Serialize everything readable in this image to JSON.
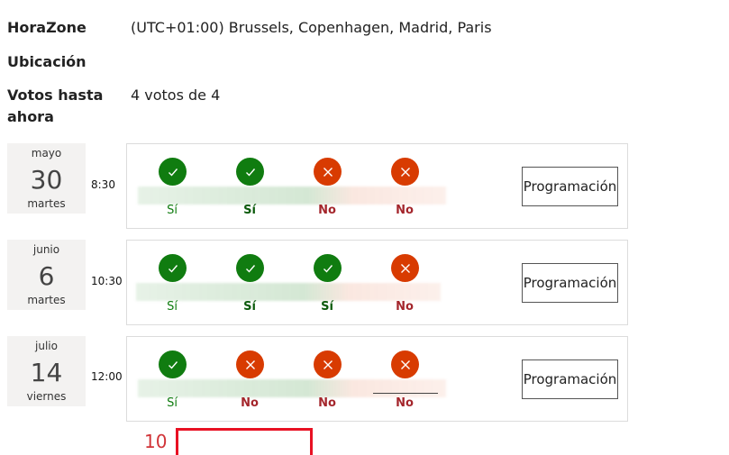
{
  "info": {
    "timezone_label": "HoraZone",
    "timezone_value": "(UTC+01:00) Brussels, Copenhagen, Madrid, Paris",
    "location_label": "Ubicación",
    "location_value": "",
    "votes_label_line1": "Votos hasta",
    "votes_label_line2": "ahora",
    "votes_value": "4 votos de 4"
  },
  "slots": [
    {
      "month": "mayo",
      "day": "30",
      "weekday": "martes",
      "time": "8:30",
      "votes": [
        {
          "value": "yes",
          "label": "Sí",
          "bold": false
        },
        {
          "value": "yes",
          "label": "Sí",
          "bold": true
        },
        {
          "value": "no",
          "label": "No",
          "bold": true
        },
        {
          "value": "no",
          "label": "No",
          "bold": true
        }
      ],
      "button_label": "Programación"
    },
    {
      "month": "junio",
      "day": "6",
      "weekday": "martes",
      "time": "10:30",
      "votes": [
        {
          "value": "yes",
          "label": "Sí",
          "bold": false
        },
        {
          "value": "yes",
          "label": "Sí",
          "bold": true
        },
        {
          "value": "yes",
          "label": "Sí",
          "bold": true
        },
        {
          "value": "no",
          "label": "No",
          "bold": true
        }
      ],
      "button_label": "Programación"
    },
    {
      "month": "julio",
      "day": "14",
      "weekday": "viernes",
      "time": "12:00",
      "votes": [
        {
          "value": "yes",
          "label": "Sí",
          "bold": false
        },
        {
          "value": "no",
          "label": "No",
          "bold": true
        },
        {
          "value": "no",
          "label": "No",
          "bold": true
        },
        {
          "value": "no",
          "label": "No",
          "bold": true
        }
      ],
      "button_label": "Programación"
    }
  ],
  "footer": {
    "partial_number": "10"
  },
  "colors": {
    "yes": "#107c10",
    "no": "#d83b01",
    "highlight": "#e81123"
  }
}
